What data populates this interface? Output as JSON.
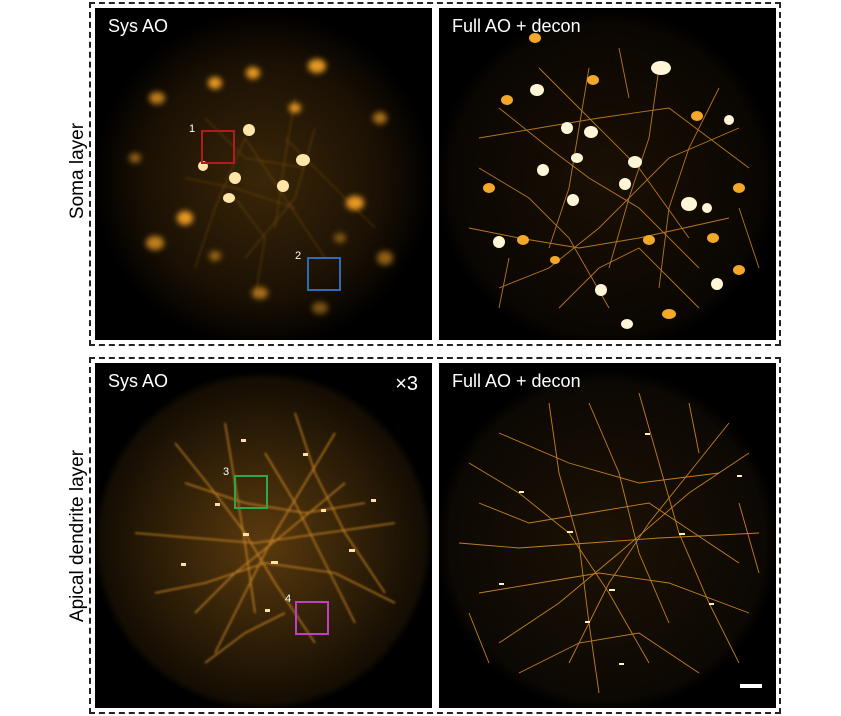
{
  "rows": {
    "top": {
      "label": "Soma layer"
    },
    "bottom": {
      "label": "Apical dendrite layer"
    }
  },
  "panels": {
    "top_left": {
      "title": "Sys AO"
    },
    "top_right": {
      "title": "Full AO + decon"
    },
    "bottom_left": {
      "title": "Sys AO",
      "magnification": "×3"
    },
    "bottom_right": {
      "title": "Full AO + decon"
    }
  },
  "rois": [
    {
      "label": "1",
      "color": "#b01c1c"
    },
    {
      "label": "2",
      "color": "#2f6db3"
    },
    {
      "label": "3",
      "color": "#2aa84a"
    },
    {
      "label": "4",
      "color": "#c23ec2"
    }
  ],
  "colors": {
    "background": "#000000",
    "glow": "#f0a020",
    "highlight": "#fff6d8"
  }
}
